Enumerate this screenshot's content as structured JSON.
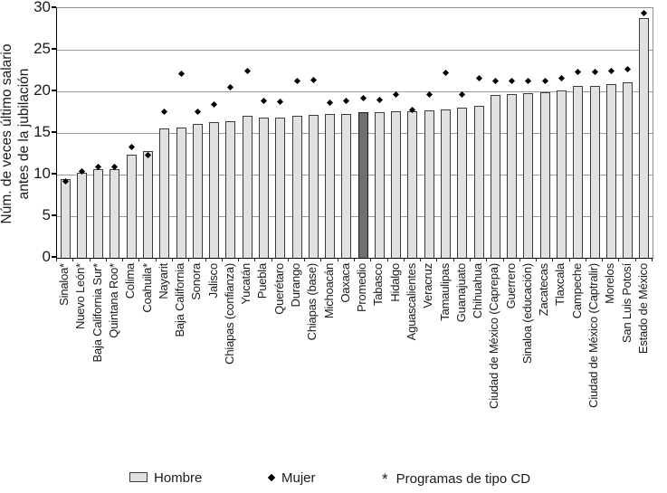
{
  "colors": {
    "background": "#ffffff",
    "bar_fill": "#e1e1e1",
    "bar_border": "#3c3c3c",
    "highlight_fill": "#6f6f6f",
    "marker": "#000000",
    "gridline": "#9a9a9a",
    "axis": "#000000",
    "text": "#1a1a1a"
  },
  "ylabel": {
    "line1": "Núm. de veces último salario",
    "line2": "antes de la jubilación"
  },
  "legend": {
    "hombre_label": "Hombre",
    "mujer_label": "Mujer",
    "cd_note_symbol": "*",
    "cd_note_label": "Programas de tipo CD"
  },
  "chart_data": {
    "type": "bar",
    "subtype": "bar-with-scatter-markers",
    "title": "",
    "xlabel": "",
    "ylabel": "Núm. de veces último salario antes de la jubilación",
    "ylim": [
      0,
      30
    ],
    "yticks": [
      0,
      5,
      10,
      15,
      20,
      25,
      30
    ],
    "grid": true,
    "legend_position": "bottom",
    "highlight_category": "Promedio",
    "highlight_index": 18,
    "cd_marker_note": "* Programas de tipo CD",
    "categories": [
      "Sinaloa*",
      "Nuevo León*",
      "Baja California Sur*",
      "Quintana Roo*",
      "Colima",
      "Coahuila*",
      "Nayarit",
      "Baja California",
      "Sonora",
      "Jalisco",
      "Chiapas (confianza)",
      "Yucatán",
      "Puebla",
      "Querétaro",
      "Durango",
      "Chiapas (base)",
      "Michoacán",
      "Oaxaca",
      "Promedio",
      "Tabasco",
      "Hidalgo",
      "Aguascalientes",
      "Veracruz",
      "Tamaulipas",
      "Guanajuato",
      "Chihuahua",
      "Ciudad de México (Caprepa)",
      "Guerrero",
      "Sinaloa (educación)",
      "Zacatecas",
      "Tlaxcala",
      "Campeche",
      "Ciudad de México (Captralir)",
      "Morelos",
      "San Luis Potosí",
      "Estado de México"
    ],
    "series": [
      {
        "name": "Hombre",
        "type": "bar",
        "values": [
          9.5,
          10.2,
          10.6,
          10.6,
          12.4,
          12.8,
          15.5,
          15.7,
          16.1,
          16.3,
          16.4,
          17.1,
          16.9,
          16.9,
          17.1,
          17.2,
          17.3,
          17.3,
          17.5,
          17.5,
          17.6,
          17.6,
          17.7,
          17.8,
          18.0,
          18.3,
          19.6,
          19.7,
          19.8,
          19.9,
          20.1,
          20.6,
          20.7,
          20.9,
          21.1,
          28.8
        ]
      },
      {
        "name": "Mujer",
        "type": "scatter",
        "marker": "diamond",
        "values": [
          9.2,
          10.4,
          10.9,
          10.9,
          13.3,
          12.3,
          17.6,
          22.1,
          17.6,
          18.4,
          20.5,
          22.4,
          18.9,
          18.7,
          21.2,
          21.4,
          18.6,
          18.9,
          19.2,
          19.0,
          19.6,
          17.8,
          19.6,
          22.2,
          19.6,
          21.6,
          21.2,
          21.3,
          21.3,
          21.3,
          21.6,
          22.3,
          22.3,
          22.4,
          22.7,
          29.4
        ]
      }
    ]
  }
}
